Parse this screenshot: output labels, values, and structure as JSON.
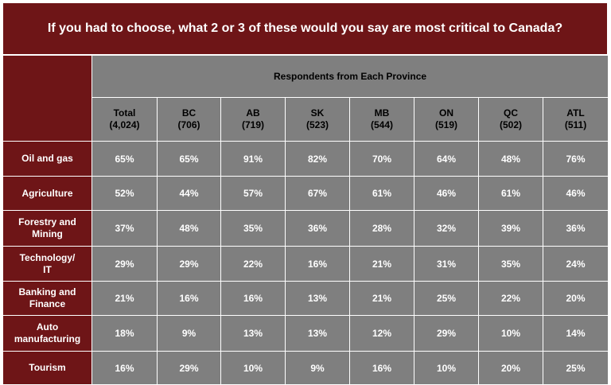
{
  "title": "If you had to choose, what 2 or 3 of these would you say are most critical to Canada?",
  "group_header": "Respondents from Each Province",
  "columns": [
    {
      "name": "Total",
      "n": "(4,024)"
    },
    {
      "name": "BC",
      "n": "(706)"
    },
    {
      "name": "AB",
      "n": "(719)"
    },
    {
      "name": "SK",
      "n": "(523)"
    },
    {
      "name": "MB",
      "n": "(544)"
    },
    {
      "name": "ON",
      "n": "(519)"
    },
    {
      "name": "QC",
      "n": "(502)"
    },
    {
      "name": "ATL",
      "n": "(511)"
    }
  ],
  "rows": [
    {
      "label_lines": [
        "Oil and gas"
      ],
      "values": [
        "65%",
        "65%",
        "91%",
        "82%",
        "70%",
        "64%",
        "48%",
        "76%"
      ]
    },
    {
      "label_lines": [
        "Agriculture"
      ],
      "values": [
        "52%",
        "44%",
        "57%",
        "67%",
        "61%",
        "46%",
        "61%",
        "46%"
      ]
    },
    {
      "label_lines": [
        "Forestry and",
        "Mining"
      ],
      "values": [
        "37%",
        "48%",
        "35%",
        "36%",
        "28%",
        "32%",
        "39%",
        "36%"
      ]
    },
    {
      "label_lines": [
        "Technology/",
        "IT"
      ],
      "values": [
        "29%",
        "29%",
        "22%",
        "16%",
        "21%",
        "31%",
        "35%",
        "24%"
      ]
    },
    {
      "label_lines": [
        "Banking and",
        "Finance"
      ],
      "values": [
        "21%",
        "16%",
        "16%",
        "13%",
        "21%",
        "25%",
        "22%",
        "20%"
      ]
    },
    {
      "label_lines": [
        "Auto",
        "manufacturing"
      ],
      "values": [
        "18%",
        "9%",
        "13%",
        "13%",
        "12%",
        "29%",
        "10%",
        "14%"
      ]
    },
    {
      "label_lines": [
        "Tourism"
      ],
      "values": [
        "16%",
        "29%",
        "10%",
        "9%",
        "16%",
        "10%",
        "20%",
        "25%"
      ]
    }
  ],
  "colors": {
    "maroon": "#6e1517",
    "grey": "#7f7f7f"
  }
}
